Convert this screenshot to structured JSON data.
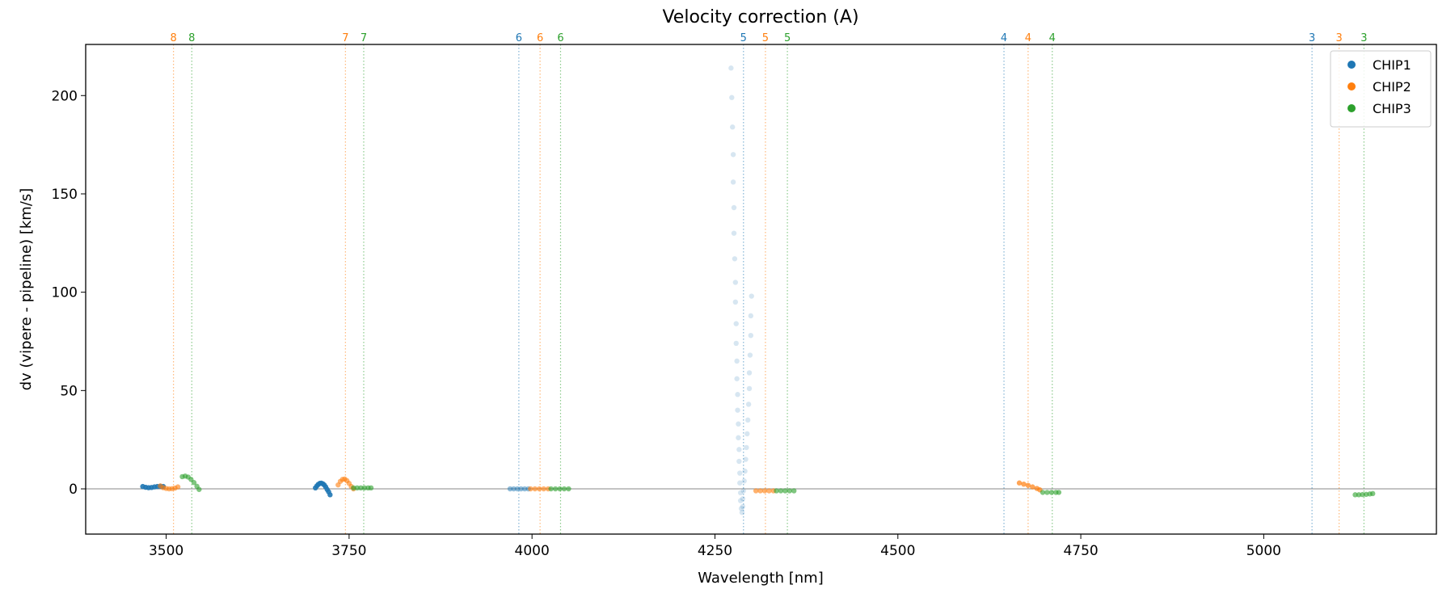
{
  "chart_data": {
    "type": "scatter",
    "title": "Velocity correction (A)",
    "xlabel": "Wavelength [nm]",
    "ylabel": "dv (vipere - pipeline) [km/s]",
    "xlim": [
      3390,
      5236
    ],
    "ylim": [
      -23,
      226
    ],
    "xticks": [
      3500,
      3750,
      4000,
      4250,
      4500,
      4750,
      5000
    ],
    "yticks": [
      0,
      50,
      100,
      150,
      200
    ],
    "grid": false,
    "legend_position": "top-right",
    "zero_line": 0,
    "series": [
      {
        "name": "CHIP1",
        "color": "#1f77b4",
        "order_lines": [
          {
            "order": "6",
            "x": 3982
          },
          {
            "order": "5",
            "x": 4289
          },
          {
            "order": "4",
            "x": 4645
          },
          {
            "order": "3",
            "x": 5066
          }
        ],
        "segments": [
          {
            "alpha": 0.9,
            "points": [
              [
                3468,
                1.2
              ],
              [
                3472,
                0.8
              ],
              [
                3476,
                0.6
              ],
              [
                3480,
                0.7
              ],
              [
                3484,
                1.0
              ],
              [
                3488,
                1.2
              ],
              [
                3492,
                1.3
              ],
              [
                3496,
                1.2
              ]
            ]
          },
          {
            "alpha": 0.9,
            "points": [
              [
                3704,
                0.5
              ],
              [
                3706,
                1.5
              ],
              [
                3708,
                2.3
              ],
              [
                3710,
                2.8
              ],
              [
                3712,
                2.9
              ],
              [
                3714,
                2.6
              ],
              [
                3716,
                2.0
              ],
              [
                3718,
                1.0
              ],
              [
                3720,
                -0.3
              ],
              [
                3722,
                -1.5
              ],
              [
                3724,
                -3.0
              ]
            ]
          },
          {
            "alpha": 0.5,
            "points": [
              [
                3970,
                0
              ],
              [
                3975,
                0
              ],
              [
                3980,
                0
              ],
              [
                3985,
                0
              ],
              [
                3990,
                0
              ],
              [
                3995,
                0
              ]
            ]
          },
          {
            "alpha": 0.18,
            "points": [
              [
                4272,
                214
              ],
              [
                4273,
                199
              ],
              [
                4274,
                184
              ],
              [
                4275,
                170
              ],
              [
                4275,
                156
              ],
              [
                4276,
                143
              ],
              [
                4276,
                130
              ],
              [
                4277,
                117
              ],
              [
                4278,
                105
              ],
              [
                4278,
                95
              ],
              [
                4279,
                84
              ],
              [
                4279,
                74
              ],
              [
                4280,
                65
              ],
              [
                4280,
                56
              ],
              [
                4281,
                48
              ],
              [
                4281,
                40
              ],
              [
                4282,
                33
              ],
              [
                4282,
                26
              ],
              [
                4283,
                20
              ],
              [
                4283,
                14
              ],
              [
                4284,
                8
              ],
              [
                4284,
                3
              ],
              [
                4285,
                -2
              ],
              [
                4285,
                -6
              ],
              [
                4286,
                -10
              ],
              [
                4287,
                -12
              ],
              [
                4300,
                98
              ],
              [
                4299,
                88
              ],
              [
                4299,
                78
              ],
              [
                4298,
                68
              ],
              [
                4297,
                59
              ],
              [
                4297,
                51
              ],
              [
                4296,
                43
              ],
              [
                4295,
                35
              ],
              [
                4294,
                28
              ],
              [
                4293,
                21
              ],
              [
                4292,
                15
              ],
              [
                4291,
                9
              ],
              [
                4290,
                4
              ],
              [
                4289,
                -1
              ],
              [
                4288,
                -5
              ],
              [
                4288,
                -9
              ]
            ]
          }
        ]
      },
      {
        "name": "CHIP2",
        "color": "#ff7f0e",
        "order_lines": [
          {
            "order": "8",
            "x": 3510
          },
          {
            "order": "7",
            "x": 3745
          },
          {
            "order": "6",
            "x": 4011
          },
          {
            "order": "5",
            "x": 4319
          },
          {
            "order": "4",
            "x": 4678
          },
          {
            "order": "3",
            "x": 5103
          }
        ],
        "segments": [
          {
            "alpha": 0.6,
            "points": [
              [
                3492,
                1.5
              ],
              [
                3496,
                0.6
              ],
              [
                3500,
                0.2
              ],
              [
                3504,
                0.0
              ],
              [
                3508,
                0.1
              ],
              [
                3512,
                0.4
              ],
              [
                3516,
                1.0
              ]
            ]
          },
          {
            "alpha": 0.6,
            "points": [
              [
                3735,
                2.0
              ],
              [
                3738,
                3.8
              ],
              [
                3741,
                4.8
              ],
              [
                3744,
                5.0
              ],
              [
                3747,
                4.2
              ],
              [
                3750,
                2.8
              ],
              [
                3753,
                1.2
              ],
              [
                3756,
                0.0
              ]
            ]
          },
          {
            "alpha": 0.6,
            "points": [
              [
                3998,
                0
              ],
              [
                4004,
                0
              ],
              [
                4010,
                0
              ],
              [
                4016,
                0
              ],
              [
                4022,
                0
              ]
            ]
          },
          {
            "alpha": 0.6,
            "points": [
              [
                4306,
                -1
              ],
              [
                4312,
                -1
              ],
              [
                4318,
                -1
              ],
              [
                4324,
                -1
              ],
              [
                4330,
                -1
              ]
            ]
          },
          {
            "alpha": 0.7,
            "points": [
              [
                4666,
                3.0
              ],
              [
                4672,
                2.4
              ],
              [
                4678,
                1.8
              ],
              [
                4684,
                1.0
              ],
              [
                4690,
                0.2
              ],
              [
                4694,
                -0.5
              ]
            ]
          }
        ]
      },
      {
        "name": "CHIP3",
        "color": "#2ca02c",
        "order_lines": [
          {
            "order": "8",
            "x": 3535
          },
          {
            "order": "7",
            "x": 3770
          },
          {
            "order": "6",
            "x": 4039
          },
          {
            "order": "5",
            "x": 4349
          },
          {
            "order": "4",
            "x": 4711
          },
          {
            "order": "3",
            "x": 5137
          }
        ],
        "segments": [
          {
            "alpha": 0.6,
            "points": [
              [
                3522,
                6.2
              ],
              [
                3526,
                6.5
              ],
              [
                3530,
                6.0
              ],
              [
                3534,
                4.8
              ],
              [
                3538,
                3.2
              ],
              [
                3542,
                1.3
              ],
              [
                3545,
                -0.3
              ]
            ]
          },
          {
            "alpha": 0.6,
            "points": [
              [
                3756,
                0.5
              ],
              [
                3761,
                0.5
              ],
              [
                3766,
                0.5
              ],
              [
                3771,
                0.5
              ],
              [
                3776,
                0.5
              ],
              [
                3780,
                0.5
              ]
            ]
          },
          {
            "alpha": 0.6,
            "points": [
              [
                4026,
                0
              ],
              [
                4032,
                0
              ],
              [
                4038,
                0
              ],
              [
                4044,
                0
              ],
              [
                4050,
                0
              ]
            ]
          },
          {
            "alpha": 0.6,
            "points": [
              [
                4334,
                -1
              ],
              [
                4340,
                -1
              ],
              [
                4346,
                -1
              ],
              [
                4352,
                -1
              ],
              [
                4358,
                -1
              ]
            ]
          },
          {
            "alpha": 0.6,
            "points": [
              [
                4698,
                -1.8
              ],
              [
                4704,
                -1.8
              ],
              [
                4710,
                -1.8
              ],
              [
                4716,
                -1.8
              ],
              [
                4720,
                -1.8
              ]
            ]
          },
          {
            "alpha": 0.6,
            "points": [
              [
                5125,
                -3.0
              ],
              [
                5130,
                -3.0
              ],
              [
                5135,
                -2.9
              ],
              [
                5140,
                -2.8
              ],
              [
                5145,
                -2.6
              ],
              [
                5149,
                -2.4
              ]
            ]
          }
        ]
      }
    ]
  }
}
